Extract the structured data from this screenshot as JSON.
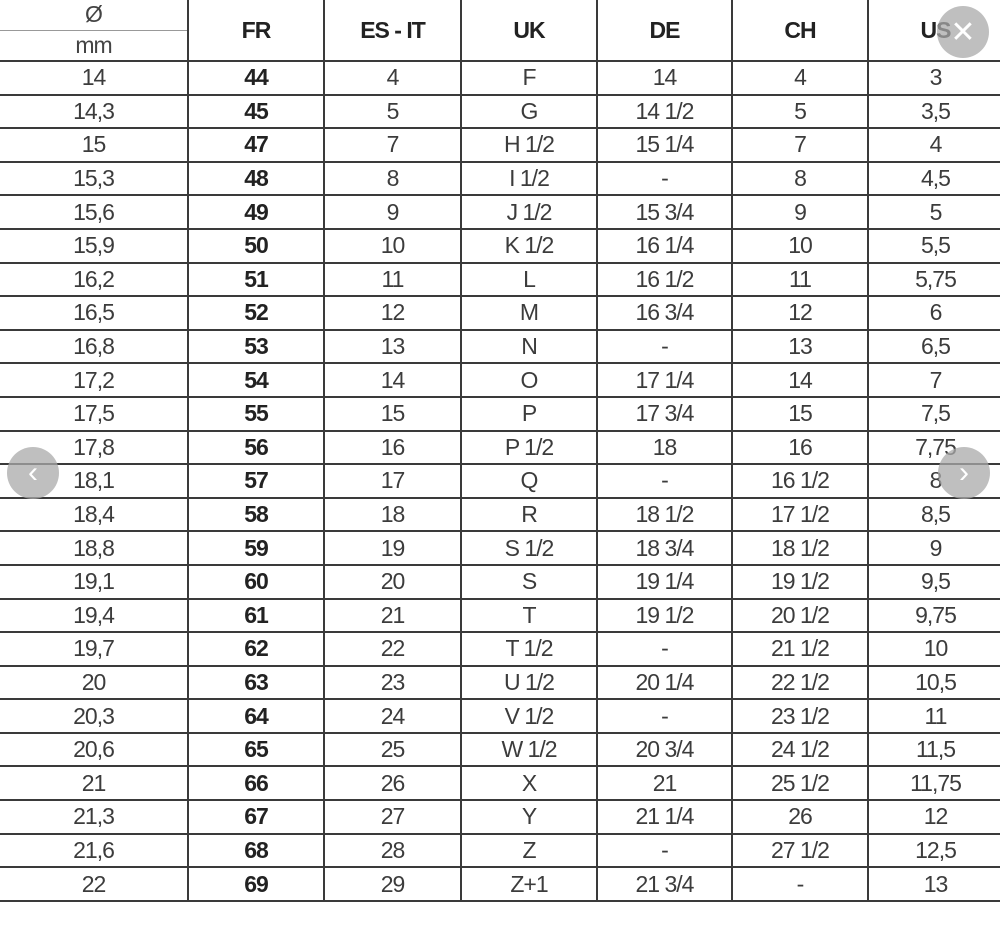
{
  "table": {
    "header": {
      "diameter_symbol": "Ø",
      "diameter_unit": "mm",
      "columns": [
        "FR",
        "ES - IT",
        "UK",
        "DE",
        "CH",
        "US"
      ]
    },
    "rows": [
      [
        "14",
        "44",
        "4",
        "F",
        "14",
        "4",
        "3"
      ],
      [
        "14,3",
        "45",
        "5",
        "G",
        "14 1/2",
        "5",
        "3,5"
      ],
      [
        "15",
        "47",
        "7",
        "H 1/2",
        "15 1/4",
        "7",
        "4"
      ],
      [
        "15,3",
        "48",
        "8",
        "I 1/2",
        "-",
        "8",
        "4,5"
      ],
      [
        "15,6",
        "49",
        "9",
        "J 1/2",
        "15 3/4",
        "9",
        "5"
      ],
      [
        "15,9",
        "50",
        "10",
        "K 1/2",
        "16 1/4",
        "10",
        "5,5"
      ],
      [
        "16,2",
        "51",
        "11",
        "L",
        "16 1/2",
        "11",
        "5,75"
      ],
      [
        "16,5",
        "52",
        "12",
        "M",
        "16 3/4",
        "12",
        "6"
      ],
      [
        "16,8",
        "53",
        "13",
        "N",
        "-",
        "13",
        "6,5"
      ],
      [
        "17,2",
        "54",
        "14",
        "O",
        "17 1/4",
        "14",
        "7"
      ],
      [
        "17,5",
        "55",
        "15",
        "P",
        "17 3/4",
        "15",
        "7,5"
      ],
      [
        "17,8",
        "56",
        "16",
        "P 1/2",
        "18",
        "16",
        "7,75"
      ],
      [
        "18,1",
        "57",
        "17",
        "Q",
        "-",
        "16 1/2",
        "8"
      ],
      [
        "18,4",
        "58",
        "18",
        "R",
        "18 1/2",
        "17 1/2",
        "8,5"
      ],
      [
        "18,8",
        "59",
        "19",
        "S 1/2",
        "18 3/4",
        "18 1/2",
        "9"
      ],
      [
        "19,1",
        "60",
        "20",
        "S",
        "19 1/4",
        "19 1/2",
        "9,5"
      ],
      [
        "19,4",
        "61",
        "21",
        "T",
        "19 1/2",
        "20 1/2",
        "9,75"
      ],
      [
        "19,7",
        "62",
        "22",
        "T 1/2",
        "-",
        "21 1/2",
        "10"
      ],
      [
        "20",
        "63",
        "23",
        "U 1/2",
        "20 1/4",
        "22 1/2",
        "10,5"
      ],
      [
        "20,3",
        "64",
        "24",
        "V 1/2",
        "-",
        "23 1/2",
        "11"
      ],
      [
        "20,6",
        "65",
        "25",
        "W 1/2",
        "20 3/4",
        "24 1/2",
        "11,5"
      ],
      [
        "21",
        "66",
        "26",
        "X",
        "21",
        "25 1/2",
        "11,75"
      ],
      [
        "21,3",
        "67",
        "27",
        "Y",
        "21 1/4",
        "26",
        "12"
      ],
      [
        "21,6",
        "68",
        "28",
        "Z",
        "-",
        "27 1/2",
        "12,5"
      ],
      [
        "22",
        "69",
        "29",
        "Z+1",
        "21 3/4",
        "-",
        "13"
      ]
    ]
  },
  "controls": {
    "close": "✕",
    "prev": "‹",
    "next": "›"
  }
}
